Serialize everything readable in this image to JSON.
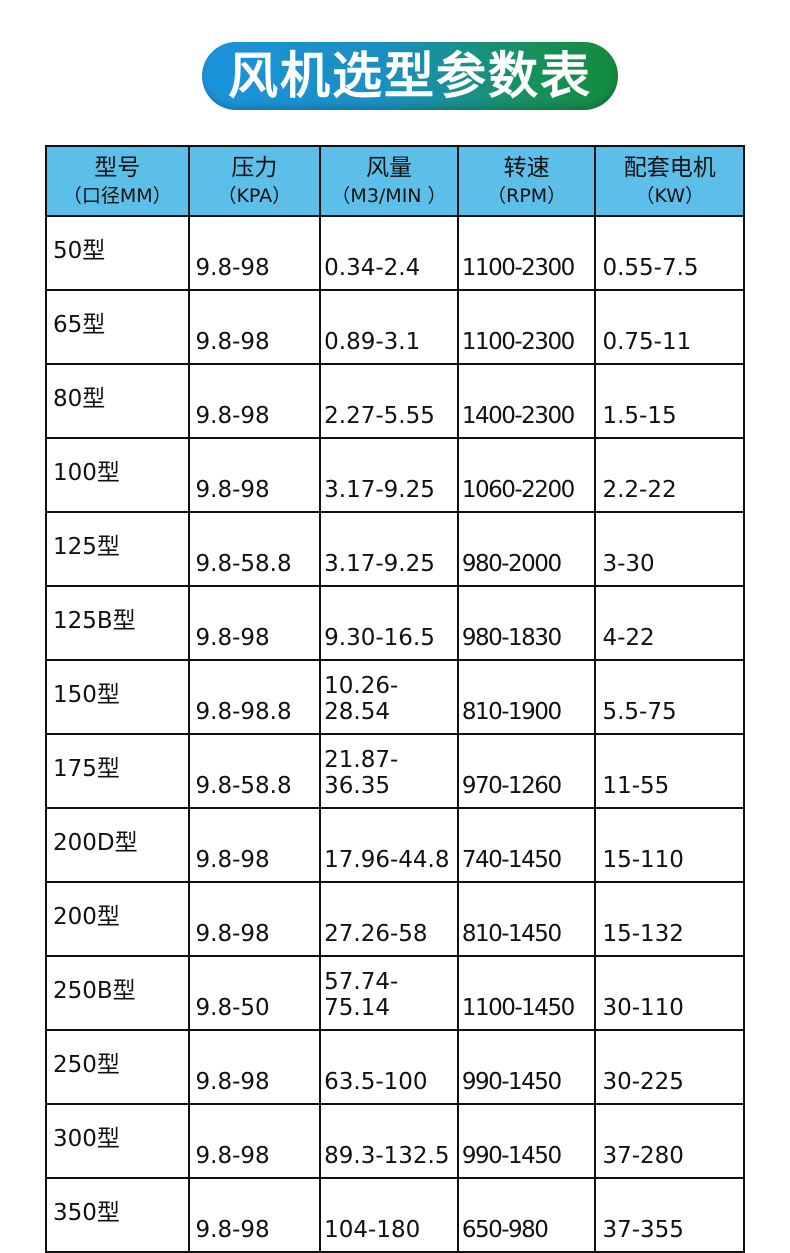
{
  "title": "风机选型参数表",
  "colors": {
    "header_bg": "#5cbfe9",
    "title_gradient_start": "#1b93dc",
    "title_gradient_end": "#148a3e"
  },
  "headers": [
    {
      "label": "型号",
      "unit": "（口径MM）"
    },
    {
      "label": "压力",
      "unit": "（KPA）"
    },
    {
      "label": "风量",
      "unit": "（M3/MIN ）"
    },
    {
      "label": "转速",
      "unit": "（RPM）"
    },
    {
      "label": "配套电机",
      "unit": "（KW）"
    }
  ],
  "rows": [
    [
      "50型",
      "9.8-98",
      "0.34-2.4",
      "1100-2300",
      "0.55-7.5"
    ],
    [
      "65型",
      "9.8-98",
      "0.89-3.1",
      "1100-2300",
      "0.75-11"
    ],
    [
      "80型",
      "9.8-98",
      "2.27-5.55",
      "1400-2300",
      "1.5-15"
    ],
    [
      "100型",
      "9.8-98",
      "3.17-9.25",
      "1060-2200",
      "2.2-22"
    ],
    [
      "125型",
      "9.8-58.8",
      "3.17-9.25",
      "980-2000",
      "3-30"
    ],
    [
      "125B型",
      "9.8-98",
      "9.30-16.5",
      "980-1830",
      "4-22"
    ],
    [
      "150型",
      "9.8-98.8",
      "10.26-28.54",
      "810-1900",
      "5.5-75"
    ],
    [
      "175型",
      "9.8-58.8",
      "21.87-36.35",
      "970-1260",
      "11-55"
    ],
    [
      "200D型",
      "9.8-98",
      "17.96-44.8",
      "740-1450",
      "15-110"
    ],
    [
      "200型",
      "9.8-98",
      "27.26-58",
      "810-1450",
      "15-132"
    ],
    [
      "250B型",
      "9.8-50",
      "57.74-75.14",
      "1100-1450",
      "30-110"
    ],
    [
      "250型",
      "9.8-98",
      "63.5-100",
      "990-1450",
      "30-225"
    ],
    [
      "300型",
      "9.8-98",
      "89.3-132.5",
      "990-1450",
      "37-280"
    ],
    [
      "350型",
      "9.8-98",
      "104-180",
      "650-980",
      "37-355"
    ]
  ]
}
